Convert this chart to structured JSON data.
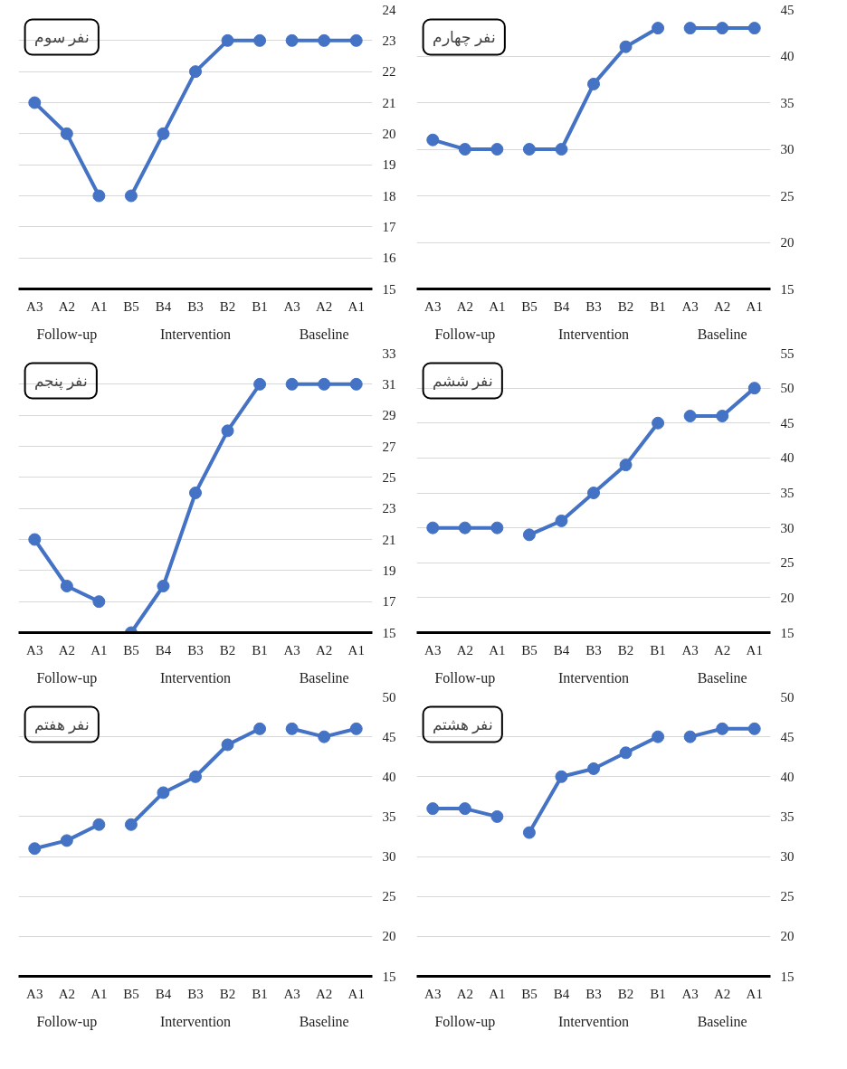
{
  "chart_data": [
    {
      "type": "line",
      "title": "نفر سوم",
      "categories": [
        "A3",
        "A2",
        "A1",
        "B5",
        "B4",
        "B3",
        "B2",
        "B1",
        "A3",
        "A2",
        "A1"
      ],
      "ylim": [
        15,
        24
      ],
      "yticks": [
        15,
        16,
        17,
        18,
        19,
        20,
        21,
        22,
        23,
        24
      ],
      "grid": "y",
      "marker": "circle",
      "line_style": "solid",
      "annotations": [
        "Follow-up",
        "Intervention",
        "Baseline"
      ],
      "series": [
        {
          "color": "#4472c4",
          "values": [
            21,
            20,
            18,
            null,
            null,
            null,
            null,
            null,
            null,
            null,
            null
          ]
        },
        {
          "color": "#4472c4",
          "values": [
            null,
            null,
            null,
            18,
            20,
            22,
            23,
            23,
            null,
            null,
            null
          ]
        },
        {
          "color": "#4472c4",
          "values": [
            null,
            null,
            null,
            null,
            null,
            null,
            null,
            null,
            23,
            23,
            23
          ]
        }
      ]
    },
    {
      "type": "line",
      "title": "نفر چهارم",
      "categories": [
        "A3",
        "A2",
        "A1",
        "B5",
        "B4",
        "B3",
        "B2",
        "B1",
        "A3",
        "A2",
        "A1"
      ],
      "ylim": [
        15,
        45
      ],
      "yticks": [
        15,
        20,
        25,
        30,
        35,
        40,
        45
      ],
      "grid": "y",
      "marker": "circle",
      "line_style": "solid",
      "annotations": [
        "Follow-up",
        "Intervention",
        "Baseline"
      ],
      "series": [
        {
          "color": "#4472c4",
          "values": [
            31,
            30,
            30,
            null,
            null,
            null,
            null,
            null,
            null,
            null,
            null
          ]
        },
        {
          "color": "#4472c4",
          "values": [
            null,
            null,
            null,
            30,
            30,
            37,
            41,
            43,
            null,
            null,
            null
          ]
        },
        {
          "color": "#4472c4",
          "values": [
            null,
            null,
            null,
            null,
            null,
            null,
            null,
            null,
            43,
            43,
            43
          ]
        }
      ]
    },
    {
      "type": "line",
      "title": "نفر پنجم",
      "categories": [
        "A3",
        "A2",
        "A1",
        "B5",
        "B4",
        "B3",
        "B2",
        "B1",
        "A3",
        "A2",
        "A1"
      ],
      "ylim": [
        15,
        33
      ],
      "yticks": [
        15,
        17,
        19,
        21,
        23,
        25,
        27,
        29,
        31,
        33
      ],
      "grid": "y",
      "marker": "circle",
      "line_style": "solid",
      "annotations": [
        "Follow-up",
        "Intervention",
        "Baseline"
      ],
      "series": [
        {
          "color": "#4472c4",
          "values": [
            21,
            18,
            17,
            null,
            null,
            null,
            null,
            null,
            null,
            null,
            null
          ]
        },
        {
          "color": "#4472c4",
          "values": [
            null,
            null,
            null,
            15,
            18,
            24,
            28,
            31,
            null,
            null,
            null
          ]
        },
        {
          "color": "#4472c4",
          "values": [
            null,
            null,
            null,
            null,
            null,
            null,
            null,
            null,
            31,
            31,
            31
          ]
        }
      ]
    },
    {
      "type": "line",
      "title": "نفر ششم",
      "categories": [
        "A3",
        "A2",
        "A1",
        "B5",
        "B4",
        "B3",
        "B2",
        "B1",
        "A3",
        "A2",
        "A1"
      ],
      "ylim": [
        15,
        55
      ],
      "yticks": [
        15,
        20,
        25,
        30,
        35,
        40,
        45,
        50,
        55
      ],
      "grid": "y",
      "marker": "circle",
      "line_style": "solid",
      "annotations": [
        "Follow-up",
        "Intervention",
        "Baseline"
      ],
      "series": [
        {
          "color": "#4472c4",
          "values": [
            30,
            30,
            30,
            null,
            null,
            null,
            null,
            null,
            null,
            null,
            null
          ]
        },
        {
          "color": "#4472c4",
          "values": [
            null,
            null,
            null,
            29,
            31,
            35,
            39,
            45,
            null,
            null,
            null
          ]
        },
        {
          "color": "#4472c4",
          "values": [
            null,
            null,
            null,
            null,
            null,
            null,
            null,
            null,
            46,
            46,
            50
          ]
        }
      ]
    },
    {
      "type": "line",
      "title": "نفر هفتم",
      "categories": [
        "A3",
        "A2",
        "A1",
        "B5",
        "B4",
        "B3",
        "B2",
        "B1",
        "A3",
        "A2",
        "A1"
      ],
      "ylim": [
        15,
        50
      ],
      "yticks": [
        15,
        20,
        25,
        30,
        35,
        40,
        45,
        50
      ],
      "grid": "y",
      "marker": "circle",
      "line_style": "solid",
      "annotations": [
        "Follow-up",
        "Intervention",
        "Baseline"
      ],
      "series": [
        {
          "color": "#4472c4",
          "values": [
            31,
            32,
            34,
            null,
            null,
            null,
            null,
            null,
            null,
            null,
            null
          ]
        },
        {
          "color": "#4472c4",
          "values": [
            null,
            null,
            null,
            34,
            38,
            40,
            44,
            46,
            null,
            null,
            null
          ]
        },
        {
          "color": "#4472c4",
          "values": [
            null,
            null,
            null,
            null,
            null,
            null,
            null,
            null,
            46,
            45,
            46
          ]
        }
      ]
    },
    {
      "type": "line",
      "title": "نفر هشتم",
      "categories": [
        "A3",
        "A2",
        "A1",
        "B5",
        "B4",
        "B3",
        "B2",
        "B1",
        "A3",
        "A2",
        "A1"
      ],
      "ylim": [
        15,
        50
      ],
      "yticks": [
        15,
        20,
        25,
        30,
        35,
        40,
        45,
        50
      ],
      "grid": "y",
      "marker": "circle",
      "line_style": "solid",
      "annotations": [
        "Follow-up",
        "Intervention",
        "Baseline"
      ],
      "series": [
        {
          "color": "#4472c4",
          "values": [
            36,
            36,
            35,
            null,
            null,
            null,
            null,
            null,
            null,
            null,
            null
          ]
        },
        {
          "color": "#4472c4",
          "values": [
            null,
            null,
            null,
            33,
            40,
            41,
            43,
            45,
            null,
            null,
            null
          ]
        },
        {
          "color": "#4472c4",
          "values": [
            null,
            null,
            null,
            null,
            null,
            null,
            null,
            null,
            45,
            46,
            46
          ]
        }
      ]
    }
  ]
}
